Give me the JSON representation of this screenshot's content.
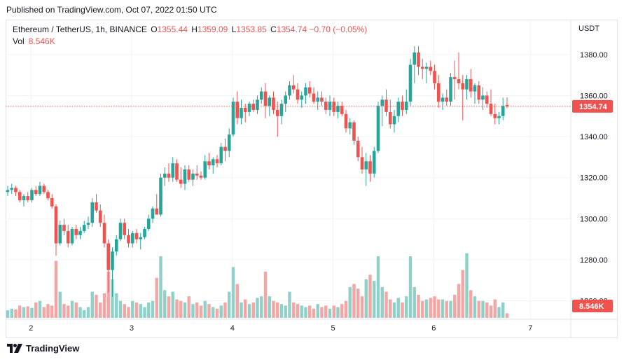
{
  "header": {
    "published": "Published on TradingView.com, Oct 07, 2022 01:50 UTC"
  },
  "legend": {
    "symbol": "Ethereum / TetherUS, 1h, BINANCE",
    "o_label": "O",
    "o_value": "1355.44",
    "h_label": "H",
    "h_value": "1359.09",
    "l_label": "L",
    "l_value": "1353.85",
    "c_label": "C",
    "c_value": "1354.74",
    "change": "−0.70 (−0.05%)",
    "vol_label": "Vol",
    "vol_value": "8.546K"
  },
  "axis": {
    "currency": "USDT"
  },
  "footer": {
    "brand": "TradingView"
  },
  "colors": {
    "up": "#26a69a",
    "down": "#ef5350",
    "up_vol": "#8fd1c9",
    "down_vol": "#f3a6a4",
    "grid": "#f0f3fa"
  },
  "chart_data": {
    "type": "candlestick",
    "symbol": "ETH/USDT",
    "timeframe": "1h",
    "y_axis": {
      "ticks": [
        1260,
        1280,
        1300,
        1320,
        1340,
        1360,
        1380
      ],
      "range": [
        1251,
        1397
      ]
    },
    "x_axis": {
      "ticks": [
        "2",
        "3",
        "4",
        "5",
        "6",
        "7"
      ]
    },
    "last_price": 1354.74,
    "last_price_label": "1354.74",
    "last_volume_label": "8.546K",
    "ohlc": [
      [
        1313,
        1316,
        1311,
        1314
      ],
      [
        1314,
        1317,
        1312,
        1315
      ],
      [
        1315,
        1316,
        1311,
        1313
      ],
      [
        1313,
        1314,
        1308,
        1309
      ],
      [
        1309,
        1312,
        1306,
        1311
      ],
      [
        1311,
        1313,
        1308,
        1309
      ],
      [
        1309,
        1315,
        1308,
        1314
      ],
      [
        1314,
        1316,
        1311,
        1312
      ],
      [
        1312,
        1318,
        1311,
        1316
      ],
      [
        1316,
        1317,
        1312,
        1313
      ],
      [
        1313,
        1314,
        1309,
        1310
      ],
      [
        1310,
        1312,
        1305,
        1306
      ],
      [
        1306,
        1307,
        1282,
        1288
      ],
      [
        1288,
        1299,
        1287,
        1297
      ],
      [
        1297,
        1300,
        1292,
        1294
      ],
      [
        1294,
        1297,
        1286,
        1288
      ],
      [
        1288,
        1296,
        1287,
        1295
      ],
      [
        1295,
        1297,
        1290,
        1292
      ],
      [
        1292,
        1296,
        1290,
        1294
      ],
      [
        1294,
        1299,
        1293,
        1297
      ],
      [
        1297,
        1301,
        1295,
        1298
      ],
      [
        1298,
        1310,
        1296,
        1308
      ],
      [
        1308,
        1312,
        1303,
        1304
      ],
      [
        1304,
        1307,
        1296,
        1298
      ],
      [
        1298,
        1302,
        1286,
        1288
      ],
      [
        1288,
        1290,
        1264,
        1275
      ],
      [
        1275,
        1286,
        1262,
        1284
      ],
      [
        1284,
        1292,
        1282,
        1290
      ],
      [
        1290,
        1300,
        1289,
        1298
      ],
      [
        1298,
        1300,
        1290,
        1292
      ],
      [
        1292,
        1295,
        1286,
        1288
      ],
      [
        1288,
        1294,
        1286,
        1293
      ],
      [
        1293,
        1295,
        1288,
        1290
      ],
      [
        1290,
        1293,
        1285,
        1291
      ],
      [
        1291,
        1296,
        1290,
        1295
      ],
      [
        1295,
        1302,
        1294,
        1300
      ],
      [
        1300,
        1306,
        1298,
        1305
      ],
      [
        1305,
        1312,
        1303,
        1302
      ],
      [
        1302,
        1322,
        1301,
        1320
      ],
      [
        1320,
        1325,
        1316,
        1322
      ],
      [
        1322,
        1327,
        1318,
        1320
      ],
      [
        1320,
        1330,
        1318,
        1327
      ],
      [
        1327,
        1329,
        1318,
        1319
      ],
      [
        1319,
        1325,
        1315,
        1317
      ],
      [
        1317,
        1326,
        1314,
        1324
      ],
      [
        1324,
        1326,
        1318,
        1319
      ],
      [
        1319,
        1324,
        1316,
        1322
      ],
      [
        1322,
        1326,
        1319,
        1321
      ],
      [
        1321,
        1323,
        1319,
        1320
      ],
      [
        1320,
        1331,
        1319,
        1328
      ],
      [
        1328,
        1332,
        1324,
        1326
      ],
      [
        1326,
        1330,
        1322,
        1329
      ],
      [
        1329,
        1331,
        1325,
        1327
      ],
      [
        1327,
        1337,
        1326,
        1335
      ],
      [
        1335,
        1339,
        1328,
        1333
      ],
      [
        1333,
        1344,
        1330,
        1341
      ],
      [
        1341,
        1359,
        1340,
        1357
      ],
      [
        1357,
        1362,
        1346,
        1349
      ],
      [
        1349,
        1358,
        1346,
        1354
      ],
      [
        1354,
        1356,
        1347,
        1352
      ],
      [
        1352,
        1357,
        1350,
        1356
      ],
      [
        1356,
        1358,
        1352,
        1353
      ],
      [
        1353,
        1360,
        1351,
        1358
      ],
      [
        1358,
        1364,
        1356,
        1362
      ],
      [
        1362,
        1366,
        1349,
        1355
      ],
      [
        1355,
        1360,
        1350,
        1359
      ],
      [
        1359,
        1362,
        1351,
        1353
      ],
      [
        1353,
        1357,
        1340,
        1350
      ],
      [
        1350,
        1358,
        1346,
        1356
      ],
      [
        1356,
        1362,
        1352,
        1360
      ],
      [
        1360,
        1367,
        1358,
        1365
      ],
      [
        1365,
        1370,
        1361,
        1363
      ],
      [
        1363,
        1366,
        1356,
        1358
      ],
      [
        1358,
        1362,
        1354,
        1360
      ],
      [
        1360,
        1366,
        1356,
        1364
      ],
      [
        1364,
        1367,
        1359,
        1361
      ],
      [
        1361,
        1364,
        1356,
        1357
      ],
      [
        1357,
        1362,
        1353,
        1359
      ],
      [
        1359,
        1362,
        1355,
        1357
      ],
      [
        1357,
        1359,
        1351,
        1353
      ],
      [
        1353,
        1360,
        1350,
        1357
      ],
      [
        1357,
        1359,
        1350,
        1352
      ],
      [
        1352,
        1357,
        1349,
        1355
      ],
      [
        1355,
        1357,
        1350,
        1351
      ],
      [
        1351,
        1353,
        1342,
        1344
      ],
      [
        1344,
        1349,
        1341,
        1347
      ],
      [
        1347,
        1348,
        1336,
        1338
      ],
      [
        1338,
        1340,
        1328,
        1330
      ],
      [
        1330,
        1335,
        1322,
        1324
      ],
      [
        1324,
        1332,
        1316,
        1328
      ],
      [
        1328,
        1331,
        1318,
        1322
      ],
      [
        1322,
        1335,
        1320,
        1333
      ],
      [
        1333,
        1357,
        1332,
        1355
      ],
      [
        1355,
        1360,
        1345,
        1358
      ],
      [
        1358,
        1363,
        1350,
        1352
      ],
      [
        1352,
        1358,
        1344,
        1346
      ],
      [
        1346,
        1353,
        1342,
        1350
      ],
      [
        1350,
        1359,
        1347,
        1357
      ],
      [
        1357,
        1360,
        1350,
        1353
      ],
      [
        1353,
        1363,
        1351,
        1357
      ],
      [
        1357,
        1378,
        1355,
        1375
      ],
      [
        1375,
        1384,
        1366,
        1381
      ],
      [
        1381,
        1384,
        1370,
        1374
      ],
      [
        1374,
        1378,
        1368,
        1373
      ],
      [
        1373,
        1376,
        1366,
        1374
      ],
      [
        1374,
        1377,
        1370,
        1372
      ],
      [
        1372,
        1375,
        1363,
        1366
      ],
      [
        1366,
        1370,
        1354,
        1357
      ],
      [
        1357,
        1361,
        1353,
        1359
      ],
      [
        1359,
        1363,
        1355,
        1357
      ],
      [
        1357,
        1371,
        1355,
        1369
      ],
      [
        1369,
        1377,
        1358,
        1368
      ],
      [
        1368,
        1381,
        1363,
        1366
      ],
      [
        1366,
        1370,
        1348,
        1363
      ],
      [
        1363,
        1370,
        1358,
        1368
      ],
      [
        1368,
        1373,
        1359,
        1362
      ],
      [
        1362,
        1366,
        1356,
        1365
      ],
      [
        1365,
        1367,
        1356,
        1358
      ],
      [
        1358,
        1364,
        1353,
        1360
      ],
      [
        1360,
        1362,
        1354,
        1356
      ],
      [
        1356,
        1363,
        1350,
        1351
      ],
      [
        1351,
        1356,
        1346,
        1349
      ],
      [
        1349,
        1352,
        1346,
        1350
      ],
      [
        1350,
        1359,
        1348,
        1355
      ],
      [
        1355.44,
        1359.09,
        1353.85,
        1354.74
      ]
    ],
    "volume_relative": [
      0.1,
      0.12,
      0.11,
      0.16,
      0.14,
      0.15,
      0.13,
      0.2,
      0.22,
      0.14,
      0.18,
      0.16,
      0.74,
      0.34,
      0.18,
      0.16,
      0.22,
      0.2,
      0.14,
      0.1,
      0.14,
      0.34,
      0.3,
      0.2,
      0.32,
      0.6,
      0.5,
      0.32,
      0.22,
      0.18,
      0.14,
      0.22,
      0.2,
      0.18,
      0.14,
      0.2,
      0.22,
      0.52,
      0.8,
      0.36,
      0.28,
      0.34,
      0.24,
      0.22,
      0.2,
      0.28,
      0.18,
      0.2,
      0.16,
      0.22,
      0.18,
      0.14,
      0.12,
      0.16,
      0.2,
      0.34,
      0.66,
      0.44,
      0.2,
      0.24,
      0.18,
      0.2,
      0.26,
      0.28,
      0.6,
      0.28,
      0.22,
      0.2,
      0.18,
      0.16,
      0.34,
      0.2,
      0.18,
      0.16,
      0.14,
      0.16,
      0.12,
      0.18,
      0.14,
      0.16,
      0.12,
      0.16,
      0.14,
      0.18,
      0.22,
      0.4,
      0.44,
      0.38,
      0.28,
      0.5,
      0.56,
      0.48,
      0.8,
      0.4,
      0.34,
      0.24,
      0.2,
      0.26,
      0.2,
      0.28,
      0.8,
      0.4,
      0.3,
      0.22,
      0.24,
      0.26,
      0.28,
      0.24,
      0.24,
      0.22,
      0.22,
      0.3,
      0.44,
      0.62,
      0.84,
      0.36,
      0.28,
      0.22,
      0.22,
      0.2,
      0.16,
      0.24,
      0.14,
      0.2,
      0.06
    ]
  }
}
